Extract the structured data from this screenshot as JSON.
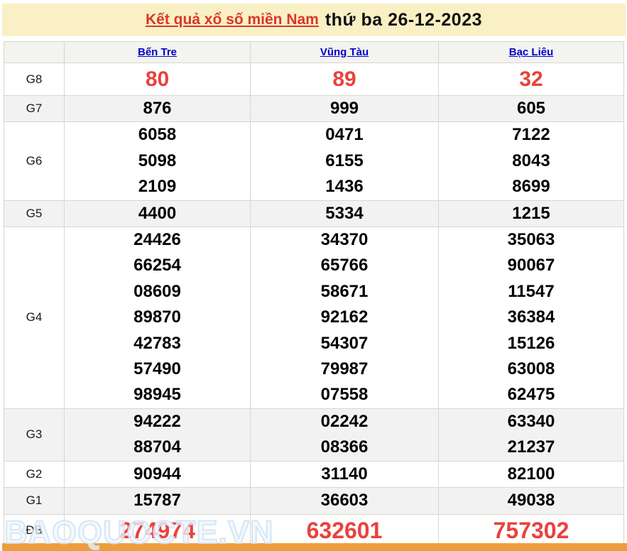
{
  "title": {
    "link_text": "Kết quả xổ số miền Nam",
    "date_text": "thứ ba 26-12-2023"
  },
  "table": {
    "provinces": [
      "Bến Tre",
      "Vũng Tàu",
      "Bạc Liêu"
    ],
    "rows": [
      {
        "label": "G8",
        "highlight": true,
        "big": false,
        "values": [
          [
            "80"
          ],
          [
            "89"
          ],
          [
            "32"
          ]
        ]
      },
      {
        "label": "G7",
        "shaded": true,
        "values": [
          [
            "876"
          ],
          [
            "999"
          ],
          [
            "605"
          ]
        ]
      },
      {
        "label": "G6",
        "values": [
          [
            "6058",
            "5098",
            "2109"
          ],
          [
            "0471",
            "6155",
            "1436"
          ],
          [
            "7122",
            "8043",
            "8699"
          ]
        ]
      },
      {
        "label": "G5",
        "shaded": true,
        "values": [
          [
            "4400"
          ],
          [
            "5334"
          ],
          [
            "1215"
          ]
        ]
      },
      {
        "label": "G4",
        "values": [
          [
            "24426",
            "66254",
            "08609",
            "89870",
            "42783",
            "57490",
            "98945"
          ],
          [
            "34370",
            "65766",
            "58671",
            "92162",
            "54307",
            "79987",
            "07558"
          ],
          [
            "35063",
            "90067",
            "11547",
            "36384",
            "15126",
            "63008",
            "62475"
          ]
        ]
      },
      {
        "label": "G3",
        "shaded": true,
        "values": [
          [
            "94222",
            "88704"
          ],
          [
            "02242",
            "08366"
          ],
          [
            "63340",
            "21237"
          ]
        ]
      },
      {
        "label": "G2",
        "values": [
          [
            "90944"
          ],
          [
            "31140"
          ],
          [
            "82100"
          ]
        ]
      },
      {
        "label": "G1",
        "shaded": true,
        "values": [
          [
            "15787"
          ],
          [
            "36603"
          ],
          [
            "49038"
          ]
        ]
      },
      {
        "label": "ĐB",
        "highlight": true,
        "big": true,
        "values": [
          [
            "274974"
          ],
          [
            "632601"
          ],
          [
            "757302"
          ]
        ]
      }
    ]
  },
  "watermark": "BAOQUOCTE.VN",
  "colors": {
    "header_background": "#FAF0C5",
    "title_link_red": "#d9362e",
    "highlight_red": "#e8423c",
    "province_link_blue": "#0000cc",
    "shaded_row": "#f2f2f2",
    "border": "#d9d6c9",
    "bottom_bar_orange": "#ee9d3e"
  }
}
